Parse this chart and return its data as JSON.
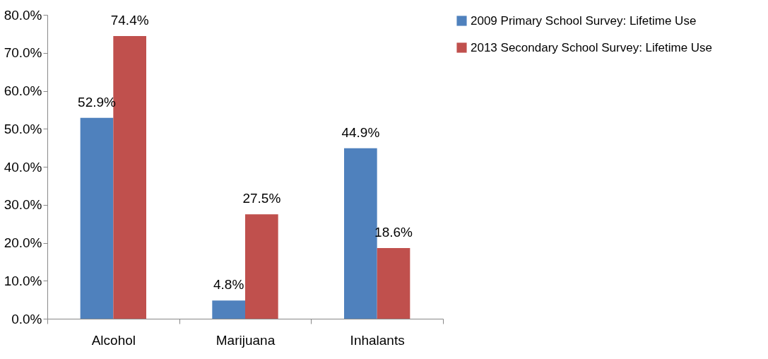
{
  "chart_data": {
    "type": "bar",
    "categories": [
      "Alcohol",
      "Marijuana",
      "Inhalants"
    ],
    "series": [
      {
        "name": "2009 Primary School Survey: Lifetime Use",
        "color": "#4f81bd",
        "values": [
          52.9,
          4.8,
          44.9
        ],
        "value_labels": [
          "52.9%",
          "4.8%",
          "44.9%"
        ]
      },
      {
        "name": "2013 Secondary School Survey: Lifetime Use",
        "color": "#c0504d",
        "values": [
          74.4,
          27.5,
          18.6
        ],
        "value_labels": [
          "74.4%",
          "27.5%",
          "18.6%"
        ]
      }
    ],
    "ylim": [
      0,
      80
    ],
    "yticks": [
      {
        "value": 0,
        "label": "0.0%"
      },
      {
        "value": 10,
        "label": "10.0%"
      },
      {
        "value": 20,
        "label": "20.0%"
      },
      {
        "value": 30,
        "label": "30.0%"
      },
      {
        "value": 40,
        "label": "40.0%"
      },
      {
        "value": 50,
        "label": "50.0%"
      },
      {
        "value": 60,
        "label": "60.0%"
      },
      {
        "value": 70,
        "label": "70.0%"
      },
      {
        "value": 80,
        "label": "80.0%"
      }
    ],
    "legend": "right"
  }
}
